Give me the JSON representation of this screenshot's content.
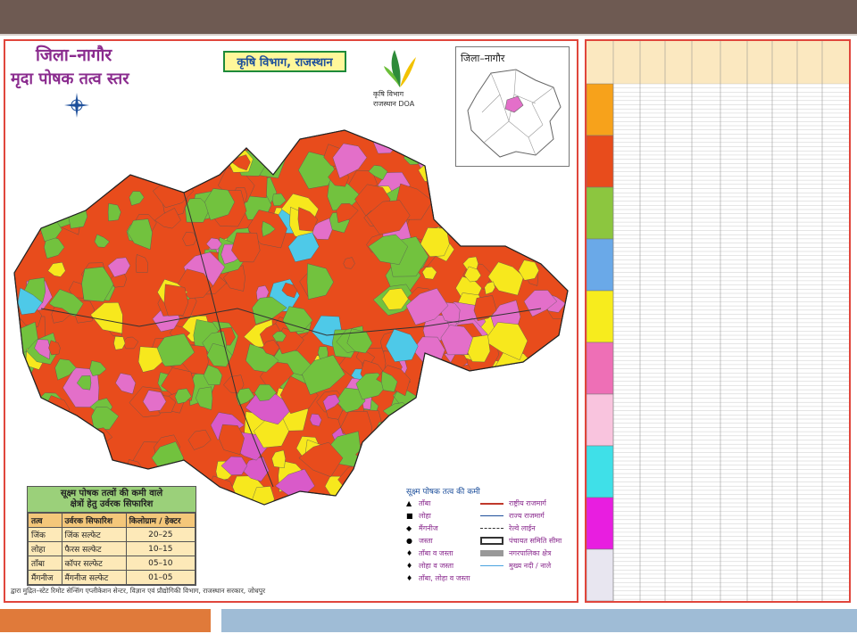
{
  "header": {
    "district": "जिला–नागौर",
    "subtitle": "मृदा पोषक तत्व स्तर",
    "department": "कृषि विभाग, राजस्थान",
    "logo_text": "कृषि विभाग राजस्थान DOA",
    "inset_title": "जिला–नागौर"
  },
  "recommendation": {
    "heading": [
      "सूक्ष्म पोषक तत्वों की कमी वाले",
      "क्षेत्रों हेतु उर्वरक सिफारिश"
    ],
    "columns": [
      "तत्व",
      "उर्वरक सिफारिश",
      "किलोग्राम / हेक्टर"
    ],
    "rows": [
      [
        "जिंक",
        "जिंक सल्फेट",
        "20–25"
      ],
      [
        "लोहा",
        "फैरस सल्फेट",
        "10–15"
      ],
      [
        "ताँबा",
        "कॉपर सल्फेट",
        "05–10"
      ],
      [
        "मैंगनीज",
        "मैंगनीज सल्फेट",
        "01–05"
      ]
    ]
  },
  "legend": {
    "title": "सूक्ष्म पोषक तत्व की कमी",
    "deficiency": [
      "ताँबा",
      "लोहा",
      "मैंगनीज",
      "जस्ता",
      "ताँबा व जस्ता",
      "लोहा व जस्ता",
      "ताँबा, लोहा व जस्ता"
    ],
    "features": [
      "राष्ट्रीय राजमार्ग",
      "राज्य राजमार्ग",
      "रेल्वे लाईन",
      "पंचायत समिति सीमा",
      "नगरपालिका क्षेत्र",
      "मुख्य नदी / नाले"
    ]
  },
  "credit": "द्वारा मुद्रित–स्टेट रिमोट सेन्सिंग एप्लीकेशन सेन्टर, विज्ञान एवं प्रौद्योगिकी विभाग, राजस्थान सरकार, जोधपुर"
}
